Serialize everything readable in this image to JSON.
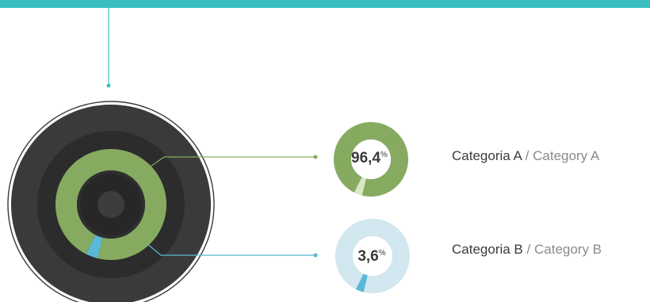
{
  "colors": {
    "accent_bar": "#3bbfc3",
    "category_a": "#87aa61",
    "category_a_light": "#d7e6c4",
    "category_b": "#5ab8d6",
    "category_b_light": "#d2e7f0",
    "disc_dark": "#3a3a3a"
  },
  "chart_data": {
    "type": "pie",
    "title": "",
    "unit": "%",
    "categories": [
      {
        "key": "a",
        "label_pt": "Categoria A",
        "label_en": "Category A",
        "value": 96.4,
        "display": "96,4"
      },
      {
        "key": "b",
        "label_pt": "Categoria B",
        "label_en": "Category B",
        "value": 3.6,
        "display": "3,6"
      }
    ]
  },
  "legend": {
    "separator": "/"
  }
}
